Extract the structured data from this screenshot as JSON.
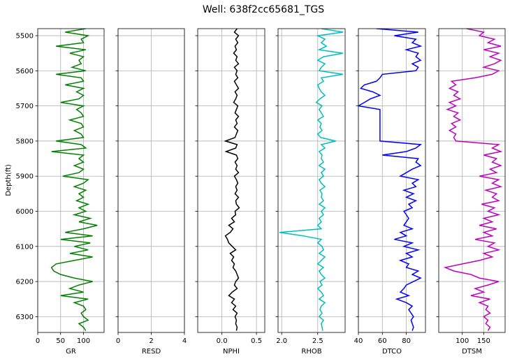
{
  "chart_data": {
    "type": "line",
    "title": "Well: 638f2cc65681_TGS",
    "ylabel": "Depth(ft)",
    "ylim": [
      6345,
      5480
    ],
    "y_ticks": [
      5500,
      5600,
      5700,
      5800,
      5900,
      6000,
      6100,
      6200,
      6300
    ],
    "y_tick_labels": [
      "5500",
      "5600",
      "5700",
      "5800",
      "5900",
      "6000",
      "6100",
      "6200",
      "6300"
    ],
    "grid": true,
    "tracks": [
      {
        "name": "GR",
        "color": "#008000",
        "xlim": [
          0,
          145
        ],
        "x_ticks": [
          0,
          50,
          100
        ],
        "x_tick_labels": [
          "0",
          "50",
          "100"
        ],
        "depths": [
          5480,
          5490,
          5500,
          5510,
          5520,
          5530,
          5540,
          5550,
          5560,
          5570,
          5580,
          5590,
          5600,
          5610,
          5620,
          5630,
          5640,
          5650,
          5660,
          5670,
          5680,
          5690,
          5700,
          5710,
          5720,
          5730,
          5740,
          5750,
          5760,
          5770,
          5780,
          5790,
          5800,
          5810,
          5820,
          5830,
          5840,
          5850,
          5860,
          5870,
          5880,
          5890,
          5900,
          5910,
          5920,
          5930,
          5940,
          5950,
          5960,
          5970,
          5980,
          5990,
          6000,
          6010,
          6020,
          6030,
          6040,
          6050,
          6060,
          6070,
          6080,
          6090,
          6100,
          6110,
          6120,
          6130,
          6140,
          6150,
          6160,
          6170,
          6180,
          6190,
          6200,
          6210,
          6220,
          6230,
          6240,
          6250,
          6260,
          6270,
          6280,
          6290,
          6300,
          6310,
          6320,
          6330,
          6340
        ],
        "values": [
          105,
          60,
          110,
          95,
          100,
          40,
          105,
          70,
          100,
          90,
          95,
          75,
          105,
          40,
          95,
          100,
          60,
          100,
          85,
          100,
          90,
          50,
          100,
          85,
          95,
          100,
          70,
          95,
          100,
          80,
          95,
          100,
          40,
          95,
          105,
          30,
          100,
          90,
          100,
          80,
          100,
          90,
          55,
          110,
          100,
          80,
          105,
          90,
          100,
          85,
          110,
          90,
          105,
          80,
          115,
          90,
          130,
          100,
          60,
          120,
          50,
          115,
          80,
          110,
          70,
          120,
          80,
          40,
          30,
          35,
          50,
          80,
          120,
          90,
          70,
          100,
          50,
          110,
          80,
          100,
          105,
          95,
          100,
          110,
          90,
          100,
          105
        ]
      },
      {
        "name": "RESD",
        "color": "#000000",
        "xlim": [
          0,
          4
        ],
        "x_ticks": [
          0,
          2,
          4
        ],
        "x_tick_labels": [
          "0",
          "2",
          "4"
        ],
        "depths": [],
        "values": []
      },
      {
        "name": "NPHI",
        "color": "#000000",
        "xlim": [
          -0.35,
          0.62
        ],
        "x_ticks": [
          0,
          0.5
        ],
        "x_tick_labels": [
          "0.0",
          "0.5"
        ],
        "depths": [
          5480,
          5490,
          5500,
          5510,
          5520,
          5530,
          5540,
          5550,
          5560,
          5570,
          5580,
          5590,
          5600,
          5610,
          5620,
          5630,
          5640,
          5650,
          5660,
          5670,
          5680,
          5690,
          5700,
          5710,
          5720,
          5730,
          5740,
          5750,
          5760,
          5770,
          5780,
          5790,
          5800,
          5810,
          5820,
          5830,
          5840,
          5850,
          5860,
          5870,
          5880,
          5890,
          5900,
          5910,
          5920,
          5930,
          5940,
          5950,
          5960,
          5970,
          5980,
          5990,
          6000,
          6010,
          6020,
          6030,
          6040,
          6050,
          6060,
          6070,
          6080,
          6090,
          6100,
          6110,
          6120,
          6130,
          6140,
          6150,
          6160,
          6170,
          6180,
          6190,
          6200,
          6210,
          6220,
          6230,
          6240,
          6250,
          6260,
          6270,
          6280,
          6290,
          6300,
          6310,
          6320,
          6330,
          6340
        ],
        "values": [
          0.22,
          0.18,
          0.24,
          0.2,
          0.23,
          0.19,
          0.21,
          0.17,
          0.22,
          0.2,
          0.24,
          0.18,
          0.22,
          0.2,
          0.23,
          0.18,
          0.21,
          0.24,
          0.19,
          0.22,
          0.2,
          0.17,
          0.23,
          0.21,
          0.19,
          0.24,
          0.2,
          0.22,
          0.18,
          0.23,
          0.21,
          0.19,
          0.05,
          0.22,
          0.2,
          0.06,
          0.21,
          0.23,
          0.19,
          0.22,
          0.2,
          0.24,
          0.18,
          0.21,
          0.23,
          0.2,
          0.22,
          0.19,
          0.24,
          0.2,
          0.21,
          0.25,
          0.19,
          0.2,
          0.14,
          0.18,
          0.1,
          0.16,
          0.12,
          0.05,
          0.08,
          0.1,
          0.15,
          0.2,
          0.12,
          0.17,
          0.14,
          0.18,
          0.16,
          0.2,
          0.22,
          0.24,
          0.2,
          0.18,
          0.22,
          0.15,
          0.1,
          0.18,
          0.14,
          0.2,
          0.16,
          0.22,
          0.19,
          0.21,
          0.2,
          0.22,
          0.21
        ]
      },
      {
        "name": "RHOB",
        "color": "#00bfbf",
        "xlim": [
          1.95,
          2.88
        ],
        "x_ticks": [
          2.0,
          2.5
        ],
        "x_tick_labels": [
          "2.0",
          "2.5"
        ],
        "depths": [
          5480,
          5490,
          5500,
          5510,
          5520,
          5530,
          5540,
          5550,
          5560,
          5570,
          5580,
          5590,
          5600,
          5610,
          5620,
          5630,
          5640,
          5650,
          5660,
          5670,
          5680,
          5690,
          5700,
          5710,
          5720,
          5730,
          5740,
          5750,
          5760,
          5770,
          5780,
          5790,
          5800,
          5810,
          5820,
          5830,
          5840,
          5850,
          5860,
          5870,
          5880,
          5890,
          5900,
          5910,
          5920,
          5930,
          5940,
          5950,
          5960,
          5970,
          5980,
          5990,
          6000,
          6010,
          6020,
          6030,
          6040,
          6050,
          6060,
          6070,
          6080,
          6090,
          6100,
          6110,
          6120,
          6130,
          6140,
          6150,
          6160,
          6170,
          6180,
          6190,
          6200,
          6210,
          6220,
          6230,
          6240,
          6250,
          6260,
          6270,
          6280,
          6290,
          6300,
          6310,
          6320,
          6330,
          6340
        ],
        "values": [
          2.55,
          2.85,
          2.5,
          2.6,
          2.55,
          2.62,
          2.52,
          2.85,
          2.58,
          2.5,
          2.6,
          2.55,
          2.52,
          2.85,
          2.55,
          2.58,
          2.5,
          2.52,
          2.55,
          2.6,
          2.53,
          2.48,
          2.56,
          2.52,
          2.55,
          2.58,
          2.5,
          2.55,
          2.53,
          2.56,
          2.5,
          2.54,
          2.75,
          2.55,
          2.6,
          2.52,
          2.56,
          2.55,
          2.58,
          2.52,
          2.6,
          2.55,
          2.58,
          2.52,
          2.55,
          2.6,
          2.53,
          2.56,
          2.55,
          2.58,
          2.52,
          2.6,
          2.55,
          2.58,
          2.52,
          2.55,
          2.5,
          2.55,
          1.97,
          2.3,
          2.55,
          2.5,
          2.56,
          2.58,
          2.52,
          2.6,
          2.55,
          2.5,
          2.58,
          2.52,
          2.55,
          2.6,
          2.53,
          2.56,
          2.5,
          2.55,
          2.58,
          2.52,
          2.6,
          2.55,
          2.53,
          2.56,
          2.52,
          2.58,
          2.55,
          2.56,
          2.57
        ]
      },
      {
        "name": "DTCO",
        "color": "#0000ff",
        "xlim": [
          40,
          96
        ],
        "x_ticks": [
          40,
          60,
          80
        ],
        "x_tick_labels": [
          "40",
          "60",
          "80"
        ],
        "depths": [
          5480,
          5490,
          5500,
          5510,
          5520,
          5530,
          5540,
          5550,
          5560,
          5570,
          5580,
          5590,
          5600,
          5610,
          5620,
          5630,
          5640,
          5650,
          5660,
          5670,
          5680,
          5690,
          5700,
          5710,
          5720,
          5730,
          5740,
          5750,
          5760,
          5770,
          5780,
          5790,
          5800,
          5810,
          5820,
          5830,
          5840,
          5850,
          5860,
          5870,
          5880,
          5890,
          5900,
          5910,
          5920,
          5930,
          5940,
          5950,
          5960,
          5970,
          5980,
          5990,
          6000,
          6010,
          6020,
          6030,
          6040,
          6050,
          6060,
          6070,
          6080,
          6090,
          6100,
          6110,
          6120,
          6130,
          6140,
          6150,
          6160,
          6170,
          6180,
          6190,
          6200,
          6210,
          6220,
          6230,
          6240,
          6250,
          6260,
          6270,
          6280,
          6290,
          6300,
          6310,
          6320,
          6330,
          6340
        ],
        "values": [
          55,
          90,
          70,
          88,
          85,
          92,
          80,
          90,
          88,
          92,
          85,
          90,
          88,
          60,
          58,
          55,
          45,
          42,
          52,
          58,
          50,
          45,
          40,
          58,
          58,
          58,
          58,
          58,
          58,
          58,
          58,
          58,
          58,
          92,
          88,
          80,
          60,
          90,
          88,
          92,
          85,
          80,
          75,
          90,
          85,
          88,
          78,
          86,
          80,
          88,
          82,
          85,
          78,
          80,
          82,
          80,
          78,
          85,
          75,
          80,
          70,
          85,
          78,
          90,
          80,
          85,
          75,
          82,
          80,
          90,
          85,
          92,
          86,
          80,
          78,
          75,
          82,
          72,
          80,
          85,
          82,
          84,
          86,
          84,
          85,
          86,
          85
        ]
      },
      {
        "name": "DTSM",
        "color": "#bf00bf",
        "xlim": [
          45,
          200
        ],
        "x_ticks": [
          100,
          150
        ],
        "x_tick_labels": [
          "100",
          "150"
        ],
        "depths": [
          5480,
          5490,
          5500,
          5510,
          5520,
          5530,
          5540,
          5550,
          5560,
          5570,
          5580,
          5590,
          5600,
          5610,
          5620,
          5630,
          5640,
          5650,
          5660,
          5670,
          5680,
          5690,
          5700,
          5710,
          5720,
          5730,
          5740,
          5750,
          5760,
          5770,
          5780,
          5790,
          5800,
          5810,
          5820,
          5830,
          5840,
          5850,
          5860,
          5870,
          5880,
          5890,
          5900,
          5910,
          5920,
          5930,
          5940,
          5950,
          5960,
          5970,
          5980,
          5990,
          6000,
          6010,
          6020,
          6030,
          6040,
          6050,
          6060,
          6070,
          6080,
          6090,
          6100,
          6110,
          6120,
          6130,
          6140,
          6150,
          6160,
          6170,
          6180,
          6190,
          6200,
          6210,
          6220,
          6230,
          6240,
          6250,
          6260,
          6270,
          6280,
          6290,
          6300,
          6310,
          6320,
          6330,
          6340
        ],
        "values": [
          110,
          150,
          140,
          175,
          160,
          190,
          150,
          185,
          165,
          190,
          175,
          150,
          185,
          170,
          130,
          75,
          85,
          70,
          90,
          80,
          95,
          70,
          85,
          65,
          90,
          80,
          95,
          75,
          85,
          70,
          85,
          80,
          85,
          185,
          170,
          190,
          150,
          180,
          170,
          190,
          165,
          180,
          140,
          185,
          170,
          190,
          155,
          180,
          170,
          185,
          145,
          175,
          160,
          185,
          150,
          170,
          140,
          180,
          150,
          170,
          130,
          175,
          160,
          185,
          150,
          170,
          140,
          100,
          60,
          80,
          120,
          140,
          185,
          160,
          130,
          150,
          120,
          165,
          140,
          160,
          155,
          165,
          150,
          160,
          155,
          165,
          160
        ]
      }
    ]
  }
}
